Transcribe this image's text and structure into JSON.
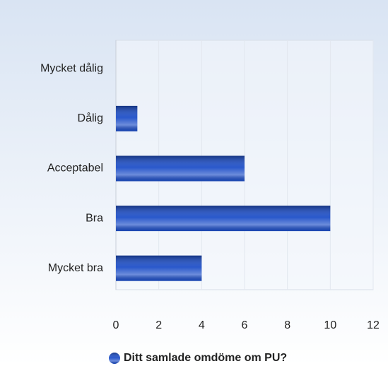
{
  "chart_data": {
    "type": "bar",
    "orientation": "horizontal",
    "categories": [
      "Mycket dålig",
      "Dålig",
      "Acceptabel",
      "Bra",
      "Mycket bra"
    ],
    "series": [
      {
        "name": "Ditt samlade omdöme om PU?",
        "color": "#1e4fc8",
        "values": [
          0,
          1,
          6,
          10,
          4
        ]
      }
    ],
    "xlim": [
      0,
      12
    ],
    "xticks": [
      0,
      2,
      4,
      6,
      8,
      10,
      12
    ],
    "grid": true,
    "legend": "bottom"
  }
}
